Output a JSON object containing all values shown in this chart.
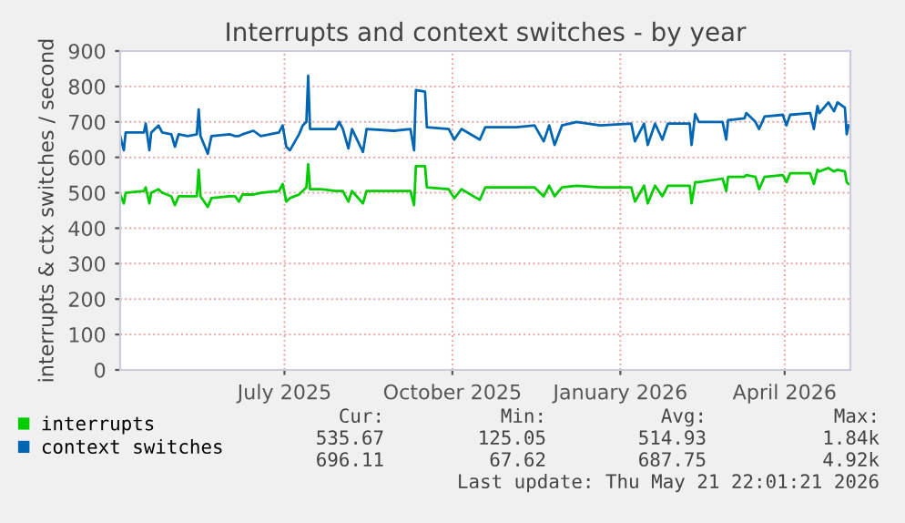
{
  "chart_data": {
    "type": "line",
    "title": "Interrupts and context switches - by year",
    "ylabel": "interrupts & ctx switches / second",
    "x": [
      "2025-04-02",
      "2025-04-04",
      "2025-04-05",
      "2025-04-15",
      "2025-04-16",
      "2025-04-18",
      "2025-04-19",
      "2025-04-23",
      "2025-04-25",
      "2025-04-30",
      "2025-05-02",
      "2025-05-04",
      "2025-05-09",
      "2025-05-14",
      "2025-05-15",
      "2025-05-16",
      "2025-05-20",
      "2025-05-22",
      "2025-06-01",
      "2025-06-04",
      "2025-06-06",
      "2025-06-08",
      "2025-06-14",
      "2025-06-18",
      "2025-06-28",
      "2025-06-30",
      "2025-07-02",
      "2025-07-04",
      "2025-07-09",
      "2025-07-11",
      "2025-07-13",
      "2025-07-14",
      "2025-07-15",
      "2025-07-21",
      "2025-07-29",
      "2025-07-31",
      "2025-08-02",
      "2025-08-05",
      "2025-08-07",
      "2025-08-13",
      "2025-08-15",
      "2025-08-30",
      "2025-09-08",
      "2025-09-10",
      "2025-09-11",
      "2025-09-16",
      "2025-09-17",
      "2025-09-29",
      "2025-10-02",
      "2025-10-06",
      "2025-10-16",
      "2025-10-19",
      "2025-11-05",
      "2025-11-15",
      "2025-11-20",
      "2025-11-23",
      "2025-11-26",
      "2025-11-30",
      "2025-12-08",
      "2025-12-21",
      "2026-01-07",
      "2026-01-09",
      "2026-01-14",
      "2026-01-16",
      "2026-01-20",
      "2026-01-24",
      "2026-01-27",
      "2026-02-08",
      "2026-02-09",
      "2026-02-11",
      "2026-02-13",
      "2026-02-26",
      "2026-02-28",
      "2026-03-01",
      "2026-03-10",
      "2026-03-11",
      "2026-03-16",
      "2026-03-18",
      "2026-03-21",
      "2026-03-31",
      "2026-04-02",
      "2026-04-04",
      "2026-04-15",
      "2026-04-17",
      "2026-04-19",
      "2026-04-20",
      "2026-04-25",
      "2026-04-28",
      "2026-04-30",
      "2026-05-04",
      "2026-05-05",
      "2026-05-06"
    ],
    "series": [
      {
        "name": "interrupts",
        "color": "#00cc00",
        "values": [
          495,
          470,
          500,
          505,
          515,
          470,
          500,
          510,
          500,
          490,
          465,
          490,
          490,
          490,
          565,
          490,
          460,
          485,
          490,
          490,
          475,
          495,
          495,
          500,
          505,
          525,
          475,
          485,
          495,
          505,
          515,
          580,
          510,
          510,
          505,
          505,
          505,
          475,
          505,
          470,
          505,
          505,
          505,
          465,
          575,
          575,
          515,
          510,
          485,
          510,
          480,
          515,
          515,
          515,
          490,
          520,
          490,
          515,
          520,
          515,
          515,
          475,
          520,
          470,
          520,
          490,
          520,
          520,
          470,
          530,
          530,
          540,
          505,
          545,
          545,
          550,
          545,
          510,
          545,
          550,
          530,
          555,
          555,
          525,
          565,
          560,
          570,
          560,
          565,
          560,
          530,
          525
        ]
      },
      {
        "name": "context switches",
        "color": "#0066b3",
        "values": [
          660,
          620,
          670,
          670,
          695,
          620,
          670,
          690,
          670,
          665,
          630,
          665,
          660,
          665,
          735,
          660,
          610,
          660,
          665,
          660,
          660,
          665,
          675,
          660,
          670,
          690,
          630,
          620,
          665,
          690,
          700,
          830,
          680,
          680,
          680,
          700,
          680,
          625,
          680,
          615,
          680,
          675,
          680,
          620,
          790,
          785,
          685,
          680,
          650,
          680,
          650,
          685,
          685,
          690,
          645,
          690,
          635,
          690,
          700,
          690,
          695,
          645,
          695,
          635,
          695,
          650,
          695,
          695,
          635,
          722,
          700,
          700,
          650,
          705,
          710,
          725,
          700,
          680,
          715,
          720,
          690,
          720,
          725,
          680,
          745,
          725,
          755,
          730,
          755,
          740,
          665,
          690
        ]
      }
    ],
    "xlim": [
      "2025-04-02",
      "2026-05-07"
    ],
    "xticks": [
      {
        "value": "2025-07-01",
        "label": "July 2025"
      },
      {
        "value": "2025-10-01",
        "label": "October 2025"
      },
      {
        "value": "2026-01-01",
        "label": "January 2026"
      },
      {
        "value": "2026-04-01",
        "label": "April 2026"
      }
    ],
    "ylim": [
      0,
      900
    ],
    "yticks": [
      0,
      100,
      200,
      300,
      400,
      500,
      600,
      700,
      800,
      900
    ],
    "grid": true,
    "legend": "bottom",
    "annotations": [
      "Cur:",
      "Min:",
      "Avg:",
      "Max:",
      "535.67",
      "125.05",
      "514.93",
      "1.84k",
      "696.11",
      "67.62",
      "687.75",
      "4.92k",
      "Last update: Thu May 21 22:01:21 2026"
    ]
  }
}
